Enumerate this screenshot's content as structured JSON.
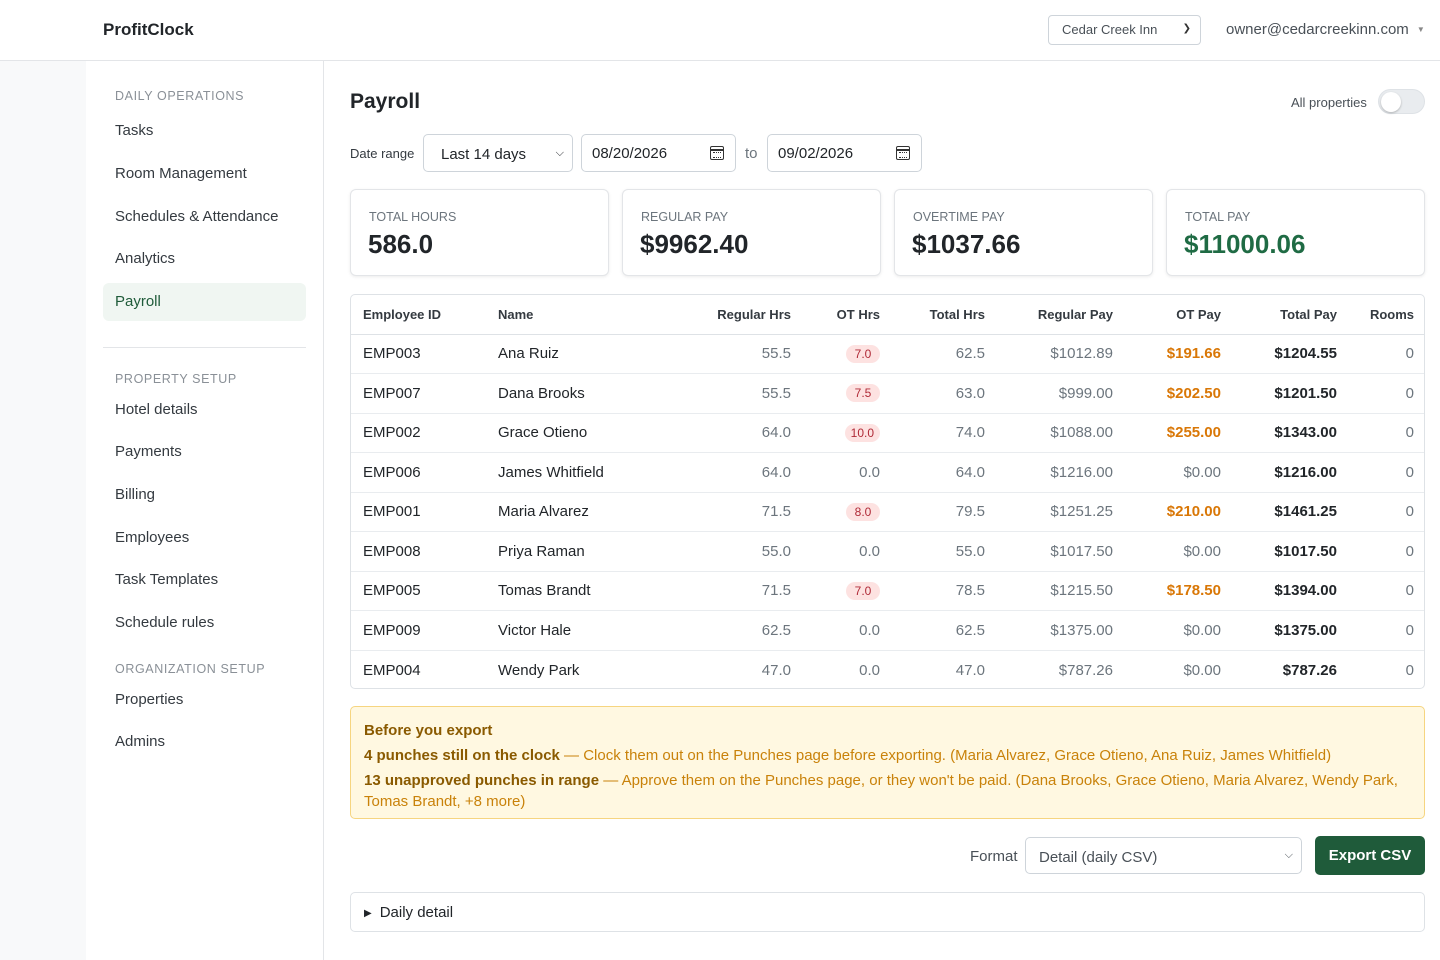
{
  "app": {
    "brand": "ProfitClock"
  },
  "header": {
    "property_select": "Cedar Creek Inn",
    "user_email": "owner@cedarcreekinn.com"
  },
  "sidebar": {
    "sections": [
      {
        "label": "DAILY OPERATIONS",
        "items": [
          "Tasks",
          "Room Management",
          "Schedules & Attendance",
          "Analytics",
          "Payroll"
        ]
      },
      {
        "label": "PROPERTY SETUP",
        "items": [
          "Hotel details",
          "Payments",
          "Billing",
          "Employees",
          "Task Templates",
          "Schedule rules"
        ]
      },
      {
        "label": "ORGANIZATION SETUP",
        "items": [
          "Properties",
          "Admins"
        ]
      }
    ],
    "active": "Payroll"
  },
  "page": {
    "title": "Payroll",
    "all_properties_label": "All properties",
    "all_properties_on": false,
    "date_range_label": "Date range",
    "range_select": "Last 14 days",
    "date_from": "08/20/2026",
    "to_label": "to",
    "date_to": "09/02/2026"
  },
  "summary": [
    {
      "label": "TOTAL HOURS",
      "value": "586.0"
    },
    {
      "label": "REGULAR PAY",
      "value": "$9962.40"
    },
    {
      "label": "OVERTIME PAY",
      "value": "$1037.66"
    },
    {
      "label": "TOTAL PAY",
      "value": "$11000.06"
    }
  ],
  "table": {
    "headers": [
      "Employee ID",
      "Name",
      "Regular Hrs",
      "OT Hrs",
      "Total Hrs",
      "Regular Pay",
      "OT Pay",
      "Total Pay",
      "Rooms"
    ],
    "rows": [
      [
        "EMP003",
        "Ana Ruiz",
        "55.5",
        "7.0",
        "62.5",
        "$1012.89",
        "$191.66",
        "$1204.55",
        "0"
      ],
      [
        "EMP007",
        "Dana Brooks",
        "55.5",
        "7.5",
        "63.0",
        "$999.00",
        "$202.50",
        "$1201.50",
        "0"
      ],
      [
        "EMP002",
        "Grace Otieno",
        "64.0",
        "10.0",
        "74.0",
        "$1088.00",
        "$255.00",
        "$1343.00",
        "0"
      ],
      [
        "EMP006",
        "James Whitfield",
        "64.0",
        "0.0",
        "64.0",
        "$1216.00",
        "$0.00",
        "$1216.00",
        "0"
      ],
      [
        "EMP001",
        "Maria Alvarez",
        "71.5",
        "8.0",
        "79.5",
        "$1251.25",
        "$210.00",
        "$1461.25",
        "0"
      ],
      [
        "EMP008",
        "Priya Raman",
        "55.0",
        "0.0",
        "55.0",
        "$1017.50",
        "$0.00",
        "$1017.50",
        "0"
      ],
      [
        "EMP005",
        "Tomas Brandt",
        "71.5",
        "7.0",
        "78.5",
        "$1215.50",
        "$178.50",
        "$1394.00",
        "0"
      ],
      [
        "EMP009",
        "Victor Hale",
        "62.5",
        "0.0",
        "62.5",
        "$1375.00",
        "$0.00",
        "$1375.00",
        "0"
      ],
      [
        "EMP004",
        "Wendy Park",
        "47.0",
        "0.0",
        "47.0",
        "$787.26",
        "$0.00",
        "$787.26",
        "0"
      ]
    ]
  },
  "alert": {
    "title": "Before you export",
    "line1_strong": "4 punches still on the clock",
    "line1_text": " — Clock them out on the Punches page before exporting. (Maria Alvarez, Grace Otieno, Ana Ruiz, James Whitfield)",
    "line2_strong": "13 unapproved punches in range",
    "line2_text": " — Approve them on the Punches page, or they won't be paid. (Dana Brooks, Grace Otieno, Maria Alvarez, Wendy Park, Tomas Brandt, +8 more)"
  },
  "export": {
    "format_label": "Format",
    "format_select": "Detail (daily CSV)",
    "button": "Export CSV"
  },
  "daily_detail": {
    "label": "Daily detail"
  },
  "colors": {
    "accent": "#1f5b3a",
    "ot_pay": "#d97706",
    "ot_pill_bg": "#fde2e1",
    "ot_pill_text": "#b02a37",
    "alert_bg": "#fff8e1"
  }
}
